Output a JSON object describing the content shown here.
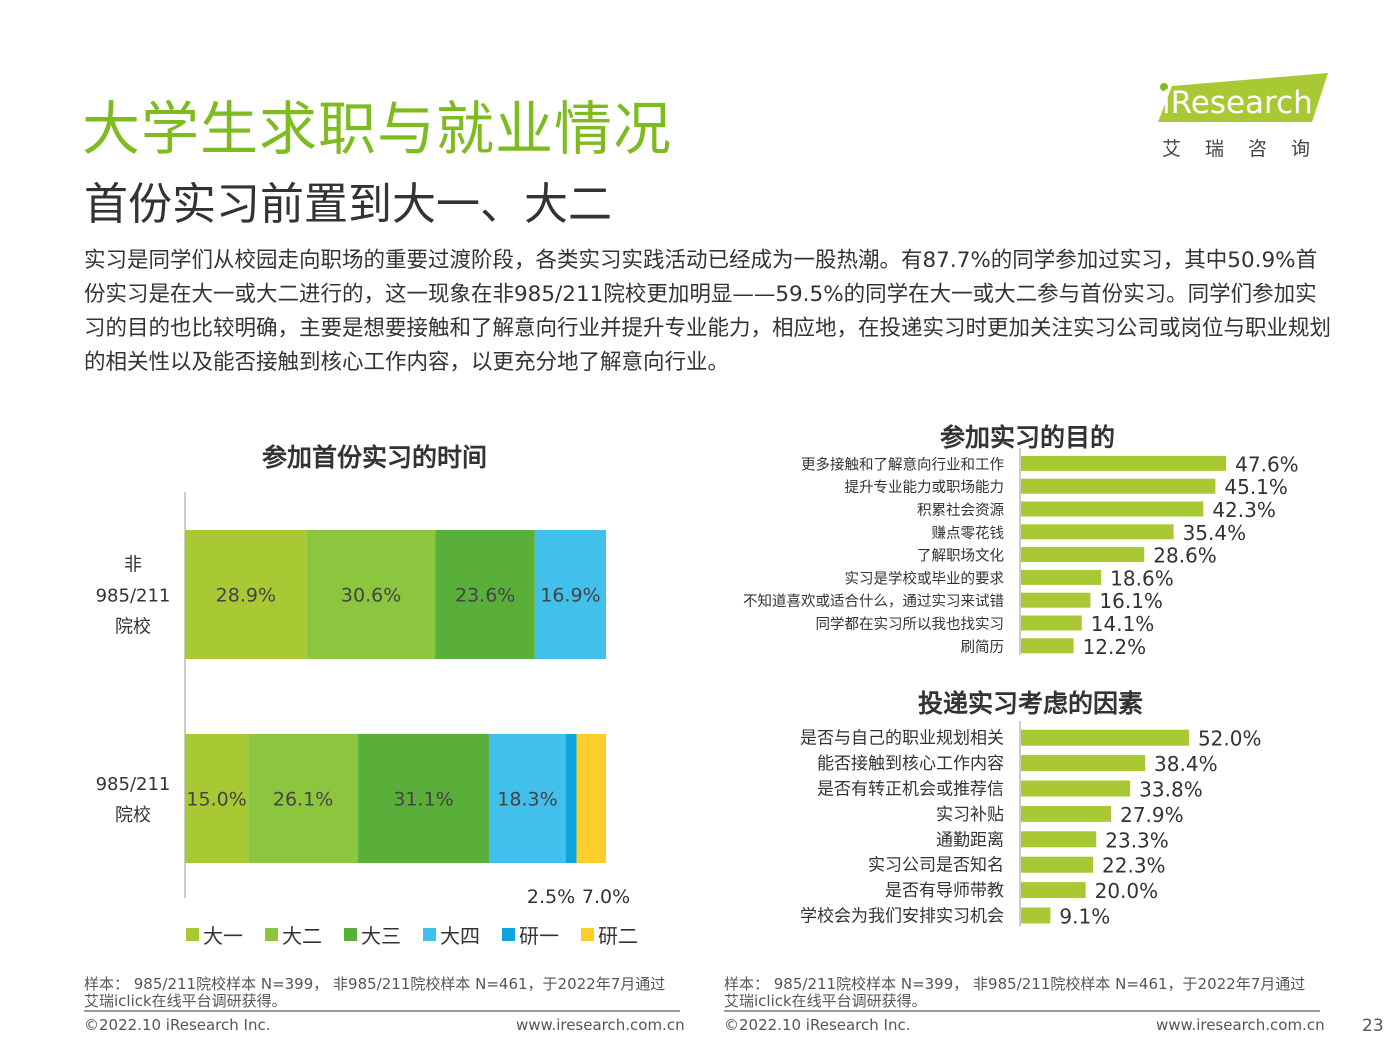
{
  "header": {
    "title": "大学生求职与就业情况",
    "subtitle": "首份实习前置到大一、大二",
    "logo_text": "iResearch",
    "logo_cn": "艾瑞咨询",
    "brand_color": "#7dbb1f"
  },
  "intro": "实习是同学们从校园走向职场的重要过渡阶段，各类实习实践活动已经成为一股热潮。有87.7%的同学参加过实习，其中50.9%首份实习是在大一或大二进行的，这一现象在非985/211院校更加明显——59.5%的同学在大一或大二参与首份实习。同学们参加实习的目的也比较明确，主要是想要接触和了解意向行业并提升专业能力，相应地，在投递实习时更加关注实习公司或岗位与职业规划的相关性以及能否接触到核心工作内容，以更充分地了解意向行业。",
  "chart_data": [
    {
      "type": "bar",
      "orientation": "horizontal-stacked",
      "title": "参加首份实习的时间",
      "categories": [
        [
          "非",
          "985/211",
          "院校"
        ],
        [
          "985/211",
          "院校"
        ]
      ],
      "series": [
        {
          "name": "大一",
          "color": "#a8c934",
          "values": [
            28.9,
            15.0
          ],
          "labels": [
            "28.9%",
            "15.0%"
          ]
        },
        {
          "name": "大二",
          "color": "#8cc63f",
          "values": [
            30.6,
            26.1
          ],
          "labels": [
            "30.6%",
            "26.1%"
          ]
        },
        {
          "name": "大三",
          "color": "#5aae3a",
          "values": [
            23.6,
            31.1
          ],
          "labels": [
            "23.6%",
            "31.1%"
          ]
        },
        {
          "name": "大四",
          "color": "#40c0ea",
          "values": [
            16.9,
            18.3
          ],
          "labels": [
            "16.9%",
            "18.3%"
          ]
        },
        {
          "name": "研一",
          "color": "#0da5dc",
          "values": [
            0,
            2.5
          ],
          "labels": [
            "",
            "2.5%"
          ]
        },
        {
          "name": "研二",
          "color": "#fcce2c",
          "values": [
            0,
            7.0
          ],
          "labels": [
            "",
            "7.0%"
          ]
        }
      ],
      "xlim": [
        0,
        100
      ],
      "legend_position": "bottom"
    },
    {
      "type": "bar",
      "orientation": "horizontal",
      "title": "参加实习的目的",
      "color": "#a8c934",
      "categories": [
        "更多接触和了解意向行业和工作",
        "提升专业能力或职场能力",
        "积累社会资源",
        "赚点零花钱",
        "了解职场文化",
        "实习是学校或毕业的要求",
        "不知道喜欢或适合什么，通过实习来试错",
        "同学都在实习所以我也找实习",
        "刷简历"
      ],
      "values": [
        47.6,
        45.1,
        42.3,
        35.4,
        28.6,
        18.6,
        16.1,
        14.1,
        12.2
      ],
      "labels": [
        "47.6%",
        "45.1%",
        "42.3%",
        "35.4%",
        "28.6%",
        "18.6%",
        "16.1%",
        "14.1%",
        "12.2%"
      ]
    },
    {
      "type": "bar",
      "orientation": "horizontal",
      "title": "投递实习考虑的因素",
      "color": "#a8c934",
      "categories": [
        "是否与自己的职业规划相关",
        "能否接触到核心工作内容",
        "是否有转正机会或推荐信",
        "实习补贴",
        "通勤距离",
        "实习公司是否知名",
        "是否有导师带教",
        "学校会为我们安排实习机会"
      ],
      "values": [
        52.0,
        38.4,
        33.8,
        27.9,
        23.3,
        22.3,
        20.0,
        9.1
      ],
      "labels": [
        "52.0%",
        "38.4%",
        "33.8%",
        "27.9%",
        "23.3%",
        "22.3%",
        "20.0%",
        "9.1%"
      ]
    }
  ],
  "source": {
    "line1": "样本： 985/211院校样本 N=399， 非985/211院校样本 N=461，于2022年7月通过",
    "line2": "艾瑞iclick在线平台调研获得。"
  },
  "footer": {
    "copyright": "©2022.10 iResearch Inc.",
    "url": "www.iresearch.com.cn",
    "page": "23"
  }
}
